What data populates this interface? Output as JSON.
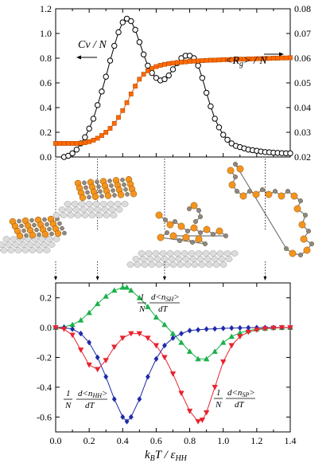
{
  "chart_data": [
    {
      "type": "line",
      "panel": "top",
      "x_range": [
        0.0,
        1.4
      ],
      "ylim_left": [
        0.0,
        1.2
      ],
      "ylim_right": [
        0.02,
        0.08
      ],
      "left_ticks": [
        "0.0",
        "0.2",
        "0.4",
        "0.6",
        "0.8",
        "1.0",
        "1.2"
      ],
      "right_ticks": [
        "0.02",
        "0.03",
        "0.04",
        "0.05",
        "0.06",
        "0.07",
        "0.08"
      ],
      "grid": false,
      "series": [
        {
          "name": "Cv / N",
          "axis": "left",
          "color": "#000000",
          "marker": "open-circle",
          "x": [
            0.05,
            0.075,
            0.1,
            0.125,
            0.15,
            0.175,
            0.2,
            0.225,
            0.25,
            0.275,
            0.3,
            0.325,
            0.35,
            0.375,
            0.4,
            0.425,
            0.45,
            0.475,
            0.5,
            0.525,
            0.55,
            0.575,
            0.6,
            0.625,
            0.65,
            0.675,
            0.7,
            0.725,
            0.75,
            0.775,
            0.8,
            0.825,
            0.85,
            0.875,
            0.9,
            0.925,
            0.95,
            0.975,
            1.0,
            1.025,
            1.05,
            1.075,
            1.1,
            1.125,
            1.15,
            1.175,
            1.2,
            1.225,
            1.25,
            1.275,
            1.3,
            1.325,
            1.35,
            1.375,
            1.4
          ],
          "y": [
            0.0,
            0.01,
            0.03,
            0.06,
            0.11,
            0.16,
            0.23,
            0.31,
            0.42,
            0.53,
            0.65,
            0.78,
            0.9,
            1.01,
            1.09,
            1.12,
            1.1,
            1.03,
            0.93,
            0.83,
            0.74,
            0.68,
            0.64,
            0.62,
            0.63,
            0.66,
            0.71,
            0.76,
            0.8,
            0.82,
            0.82,
            0.8,
            0.74,
            0.64,
            0.52,
            0.41,
            0.31,
            0.24,
            0.18,
            0.14,
            0.11,
            0.09,
            0.08,
            0.07,
            0.06,
            0.055,
            0.05,
            0.045,
            0.04,
            0.038,
            0.035,
            0.033,
            0.031,
            0.03,
            0.03
          ]
        },
        {
          "name": "<R_g> / N",
          "axis": "right",
          "color": "#ff6a00",
          "marker": "square",
          "x": [
            0.0,
            0.025,
            0.05,
            0.075,
            0.1,
            0.125,
            0.15,
            0.175,
            0.2,
            0.225,
            0.25,
            0.275,
            0.3,
            0.325,
            0.35,
            0.375,
            0.4,
            0.425,
            0.45,
            0.475,
            0.5,
            0.525,
            0.55,
            0.575,
            0.6,
            0.625,
            0.65,
            0.675,
            0.7,
            0.725,
            0.75,
            0.775,
            0.8,
            0.825,
            0.85,
            0.875,
            0.9,
            0.925,
            0.95,
            0.975,
            1.0,
            1.025,
            1.05,
            1.075,
            1.1,
            1.125,
            1.15,
            1.175,
            1.2,
            1.225,
            1.25,
            1.275,
            1.3,
            1.325,
            1.35,
            1.375,
            1.4
          ],
          "y": [
            0.0255,
            0.0255,
            0.0255,
            0.0255,
            0.0255,
            0.0255,
            0.0256,
            0.0258,
            0.0262,
            0.0268,
            0.0276,
            0.0287,
            0.03,
            0.0316,
            0.0336,
            0.036,
            0.0388,
            0.042,
            0.0455,
            0.0487,
            0.0515,
            0.0535,
            0.0549,
            0.0559,
            0.0566,
            0.0571,
            0.0575,
            0.0578,
            0.058,
            0.0582,
            0.0584,
            0.0585,
            0.0587,
            0.0588,
            0.0589,
            0.059,
            0.0591,
            0.0592,
            0.0592,
            0.0593,
            0.0594,
            0.0594,
            0.0595,
            0.0595,
            0.0596,
            0.0596,
            0.0597,
            0.0597,
            0.0598,
            0.0598,
            0.0599,
            0.0599,
            0.06,
            0.06,
            0.0601,
            0.0601,
            0.0602
          ]
        }
      ],
      "annotations": {
        "cv_label": "Cv / N",
        "rg_label": "<R",
        "rg_sub": "g",
        "rg_tail": "> / N"
      },
      "guide_lines_x": [
        0.0,
        0.25,
        0.65,
        1.25
      ]
    },
    {
      "type": "line",
      "panel": "bottom",
      "xlabel": "k",
      "xlabel_sub": "B",
      "xlabel_tail": "T / ε",
      "xlabel_sub2": "HH",
      "x_ticks": [
        "0.0",
        "0.2",
        "0.4",
        "0.6",
        "0.8",
        "1.0",
        "1.2",
        "1.4"
      ],
      "xlim": [
        0.0,
        1.4
      ],
      "ylim": [
        -0.7,
        0.3
      ],
      "y_ticks": [
        "0.2",
        "0.0",
        "-0.2",
        "-0.4",
        "-0.6"
      ],
      "grid": false,
      "series": [
        {
          "name": "1/N d<n_SH>/dT",
          "color": "#1ab04a",
          "marker": "triangle-up",
          "x": [
            0.0,
            0.05,
            0.1,
            0.15,
            0.2,
            0.25,
            0.3,
            0.35,
            0.4,
            0.425,
            0.45,
            0.5,
            0.55,
            0.6,
            0.65,
            0.7,
            0.75,
            0.8,
            0.85,
            0.9,
            0.95,
            1.0,
            1.05,
            1.1,
            1.15,
            1.2,
            1.25,
            1.3,
            1.35,
            1.4
          ],
          "y": [
            0.0,
            0.005,
            0.02,
            0.05,
            0.1,
            0.16,
            0.21,
            0.25,
            0.27,
            0.27,
            0.25,
            0.2,
            0.14,
            0.07,
            0.02,
            -0.04,
            -0.1,
            -0.16,
            -0.21,
            -0.21,
            -0.16,
            -0.1,
            -0.06,
            -0.035,
            -0.02,
            -0.01,
            -0.005,
            0.0,
            0.0,
            0.0
          ]
        },
        {
          "name": "1/N d<n_HH>/dT",
          "color": "#1f2aa8",
          "marker": "diamond",
          "x": [
            0.0,
            0.05,
            0.1,
            0.15,
            0.2,
            0.25,
            0.3,
            0.35,
            0.4,
            0.425,
            0.45,
            0.5,
            0.55,
            0.6,
            0.65,
            0.7,
            0.75,
            0.8,
            0.85,
            0.9,
            0.95,
            1.0,
            1.05,
            1.1,
            1.15,
            1.2,
            1.25,
            1.3,
            1.35,
            1.4
          ],
          "y": [
            0.0,
            0.0,
            -0.01,
            -0.04,
            -0.1,
            -0.2,
            -0.33,
            -0.48,
            -0.6,
            -0.63,
            -0.6,
            -0.48,
            -0.33,
            -0.21,
            -0.12,
            -0.07,
            -0.04,
            -0.02,
            -0.015,
            -0.01,
            -0.008,
            -0.005,
            -0.003,
            -0.002,
            -0.001,
            0.0,
            0.0,
            0.0,
            0.0,
            0.0
          ]
        },
        {
          "name": "1/N d<n_SP>/dT",
          "color": "#e8232e",
          "marker": "triangle-down",
          "x": [
            0.0,
            0.05,
            0.1,
            0.15,
            0.2,
            0.25,
            0.3,
            0.35,
            0.4,
            0.45,
            0.5,
            0.55,
            0.6,
            0.65,
            0.7,
            0.75,
            0.8,
            0.85,
            0.875,
            0.9,
            0.95,
            1.0,
            1.05,
            1.1,
            1.15,
            1.2,
            1.25,
            1.3,
            1.35,
            1.4
          ],
          "y": [
            0.0,
            -0.01,
            -0.05,
            -0.15,
            -0.25,
            -0.28,
            -0.22,
            -0.13,
            -0.07,
            -0.04,
            -0.04,
            -0.07,
            -0.12,
            -0.2,
            -0.31,
            -0.44,
            -0.56,
            -0.63,
            -0.62,
            -0.57,
            -0.4,
            -0.23,
            -0.12,
            -0.06,
            -0.03,
            -0.015,
            -0.007,
            -0.003,
            0.0,
            0.0
          ]
        }
      ],
      "labels": {
        "sh": {
          "one": "1",
          "n": "N",
          "num": "d<n",
          "sub": "SH",
          "close": ">",
          "den": "dT"
        },
        "hh": {
          "one": "1",
          "n": "N",
          "num": "d<n",
          "sub": "HH",
          "close": ">",
          "den": "dT"
        },
        "sp": {
          "one": "1",
          "n": "N",
          "num": "d<n",
          "sub": "SP",
          "close": ">",
          "den": "dT"
        }
      }
    }
  ],
  "colors": {
    "orange": "#f5941d",
    "grey": "#8a8a8a",
    "substrate": "#dcdcdc"
  }
}
